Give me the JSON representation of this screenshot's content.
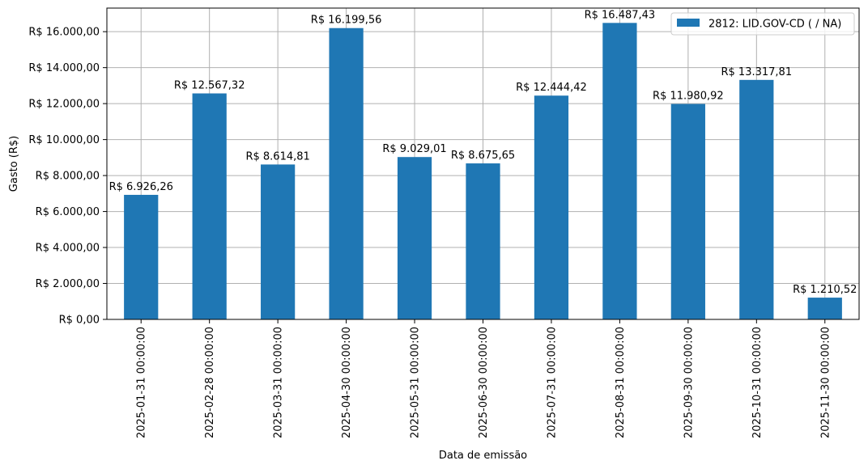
{
  "chart_data": {
    "type": "bar",
    "categories": [
      "2025-01-31 00:00:00",
      "2025-02-28 00:00:00",
      "2025-03-31 00:00:00",
      "2025-04-30 00:00:00",
      "2025-05-31 00:00:00",
      "2025-06-30 00:00:00",
      "2025-07-31 00:00:00",
      "2025-08-31 00:00:00",
      "2025-09-30 00:00:00",
      "2025-10-31 00:00:00",
      "2025-11-30 00:00:00"
    ],
    "series": [
      {
        "name": "2812: LID.GOV-CD ( / NA)",
        "color": "#1f77b4",
        "values": [
          6926.26,
          12567.32,
          8614.81,
          16199.56,
          9029.01,
          8675.65,
          12444.42,
          16487.43,
          11980.92,
          13317.81,
          1210.52
        ],
        "labels": [
          "R$ 6.926,26",
          "R$ 12.567,32",
          "R$ 8.614,81",
          "R$ 16.199,56",
          "R$ 9.029,01",
          "R$ 8.675,65",
          "R$ 12.444,42",
          "R$ 16.487,43",
          "R$ 11.980,92",
          "R$ 13.317,81",
          "R$ 1.210,52"
        ]
      }
    ],
    "title": "",
    "xlabel": "Data de emissão",
    "ylabel": "Gasto (R$)",
    "ylim": [
      0,
      17311.8
    ],
    "yticks": [
      0,
      2000,
      4000,
      6000,
      8000,
      10000,
      12000,
      14000,
      16000
    ],
    "ytick_labels": [
      "R$ 0,00",
      "R$ 2.000,00",
      "R$ 4.000,00",
      "R$ 6.000,00",
      "R$ 8.000,00",
      "R$ 10.000,00",
      "R$ 12.000,00",
      "R$ 14.000,00",
      "R$ 16.000,00"
    ],
    "grid": true,
    "legend_position": "top-right"
  }
}
